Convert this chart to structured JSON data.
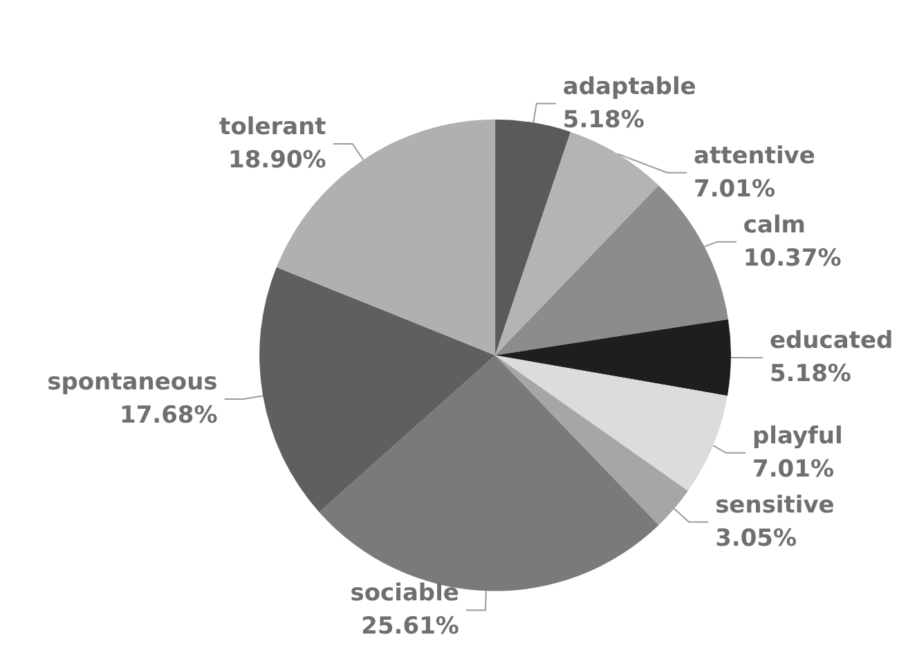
{
  "chart_data": {
    "type": "pie",
    "categories": [
      "adaptable",
      "attentive",
      "calm",
      "educated",
      "playful",
      "sensitive",
      "sociable",
      "spontaneous",
      "tolerant"
    ],
    "values": [
      5.18,
      7.01,
      10.37,
      5.18,
      7.01,
      3.05,
      25.61,
      17.68,
      18.9
    ],
    "value_labels": [
      "5.18%",
      "7.01%",
      "10.37%",
      "5.18%",
      "7.01%",
      "3.05%",
      "25.61%",
      "17.68%",
      "18.90%"
    ],
    "colors": [
      "#5a5a5a",
      "#b4b4b4",
      "#8c8c8c",
      "#1e1e1e",
      "#dcdcdc",
      "#a6a6a6",
      "#7a7a7a",
      "#5f5f5f",
      "#b0b0b0"
    ],
    "legend": false
  }
}
